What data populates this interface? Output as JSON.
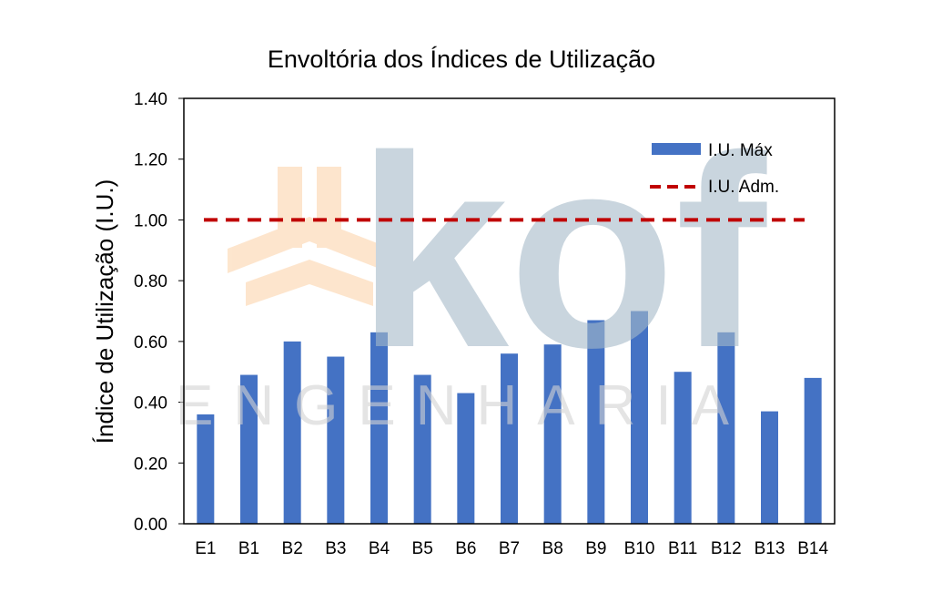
{
  "chart_data": {
    "type": "bar",
    "title": "Envoltória dos Índices de Utilização",
    "xlabel": "",
    "ylabel": "Índice de Utilização (I.U.)",
    "ylim": [
      0,
      1.4
    ],
    "yticks": [
      "0.00",
      "0.20",
      "0.40",
      "0.60",
      "0.80",
      "1.00",
      "1.20",
      "1.40"
    ],
    "ytick_values": [
      0,
      0.2,
      0.4,
      0.6,
      0.8,
      1.0,
      1.2,
      1.4
    ],
    "categories": [
      "E1",
      "B1",
      "B2",
      "B3",
      "B4",
      "B5",
      "B6",
      "B7",
      "B8",
      "B9",
      "B10",
      "B11",
      "B12",
      "B13",
      "B14"
    ],
    "series": [
      {
        "name": "I.U. Máx",
        "type": "bar",
        "color": "#4472c4",
        "values": [
          0.36,
          0.49,
          0.6,
          0.55,
          0.63,
          0.49,
          0.43,
          0.56,
          0.59,
          0.67,
          0.7,
          0.5,
          0.63,
          0.37,
          0.48
        ]
      },
      {
        "name": "I.U. Adm.",
        "type": "line",
        "style": "dashed",
        "color": "#c00000",
        "value": 1.0
      }
    ],
    "grid": false,
    "legend_position": "top-right"
  },
  "watermark": {
    "text": "kof",
    "subtext": "ENGENHARIA",
    "logo_color": "#fcd5ad",
    "text_color": "#a6bac9"
  }
}
